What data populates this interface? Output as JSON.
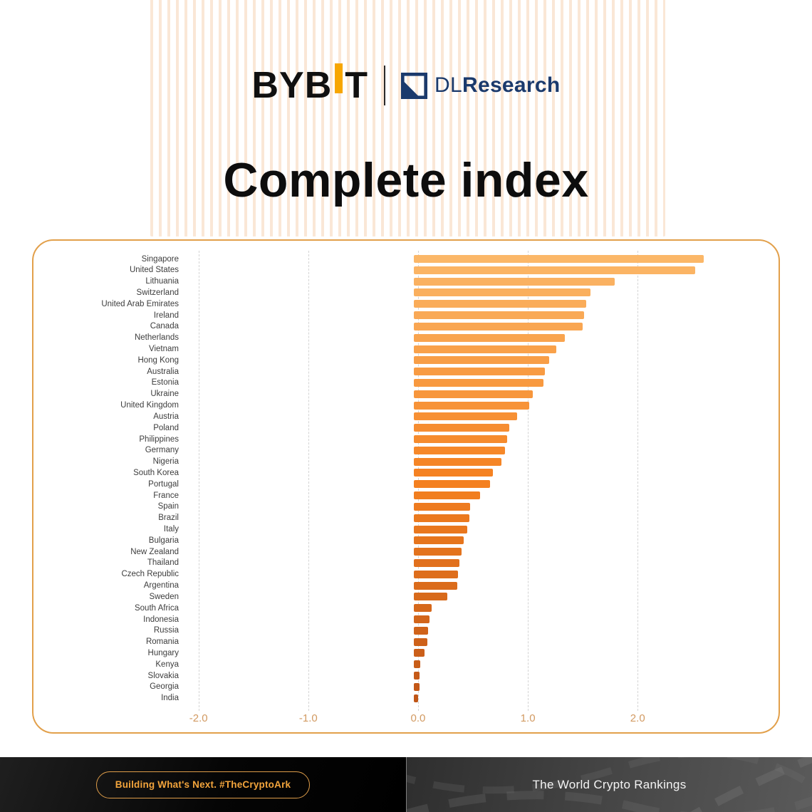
{
  "header": {
    "brand": {
      "bybit_pre": "BYB",
      "bybit_post": "T",
      "partner_prefix": "DL",
      "partner_suffix": "Research"
    },
    "title": "Complete index"
  },
  "chart_data": {
    "type": "bar",
    "orientation": "horizontal",
    "title": "Complete index",
    "categories": [
      "Singapore",
      "United States",
      "Lithuania",
      "Switzerland",
      "United Arab Emirates",
      "Ireland",
      "Canada",
      "Netherlands",
      "Vietnam",
      "Hong Kong",
      "Australia",
      "Estonia",
      "Ukraine",
      "United Kingdom",
      "Austria",
      "Poland",
      "Philippines",
      "Germany",
      "Nigeria",
      "South Korea",
      "Portugal",
      "France",
      "Spain",
      "Brazil",
      "Italy",
      "Bulgaria",
      "New Zealand",
      "Thailand",
      "Czech Republic",
      "Argentina",
      "Sweden",
      "South Africa",
      "Indonesia",
      "Russia",
      "Romania",
      "Hungary",
      "Kenya",
      "Slovakia",
      "Georgia",
      "India"
    ],
    "values": [
      2.61,
      2.53,
      1.81,
      1.59,
      1.55,
      1.53,
      1.52,
      1.36,
      1.28,
      1.22,
      1.18,
      1.17,
      1.07,
      1.04,
      0.93,
      0.86,
      0.84,
      0.82,
      0.79,
      0.71,
      0.69,
      0.6,
      0.51,
      0.5,
      0.48,
      0.45,
      0.43,
      0.41,
      0.4,
      0.39,
      0.3,
      0.16,
      0.14,
      0.13,
      0.12,
      0.1,
      0.06,
      0.05,
      0.05,
      0.04
    ],
    "x_ticks": [
      -2.0,
      -1.0,
      0.0,
      1.0,
      2.0
    ],
    "x_tick_labels": [
      "-2.0",
      "-1.0",
      "0.0",
      "1.0",
      "2.0"
    ],
    "xlim_render": [
      -2.05,
      3.27
    ],
    "bar_zero": 0,
    "grid": "vertical-dashed",
    "legend": "none",
    "bar_color_scale": [
      "#FBB768",
      "#F58120",
      "#C05617"
    ]
  },
  "footer": {
    "left_badge": "Building What's Next. #TheCryptoArk",
    "right_text": "The World Crypto Rankings"
  },
  "colors": {
    "accent_orange": "#F7A600",
    "brand_navy": "#1B3A6C",
    "card_border": "#E2A04B",
    "tick_label": "#D29A62",
    "badge_text": "#F2A43C",
    "badge_border": "#DD9C49",
    "footer_left_bg": "#000000",
    "footer_right_bg": "#4a4a4a"
  },
  "icons": {
    "dlresearch_mark": "navy-square-with-diagonal-slash",
    "bybit_accent": "raised-orange-bar"
  }
}
